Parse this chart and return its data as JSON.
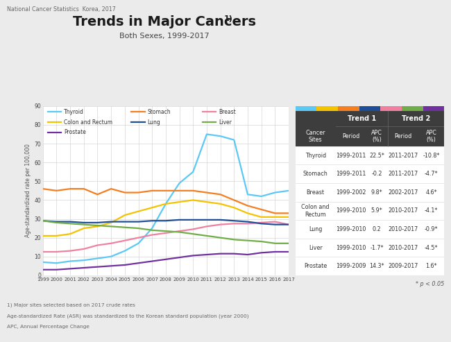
{
  "title": "Trends in Major Cancers",
  "title_superscript": "1)",
  "subtitle": "Both Sexes, 1999-2017",
  "header_note": "National Cancer Statistics  Korea, 2017",
  "footer_notes": [
    "¹⁾ Major sites selected based on 2017 crude rates",
    "Age-standardized Rate (ASR) was standardized to the Korean standard population (year 2000)",
    "APC, Annual Percentage Change"
  ],
  "ylabel": "Age-standardized rate per 100,000",
  "years": [
    1999,
    2000,
    2001,
    2002,
    2003,
    2004,
    2005,
    2006,
    2007,
    2008,
    2009,
    2010,
    2011,
    2012,
    2013,
    2014,
    2015,
    2016,
    2017
  ],
  "series": {
    "Thyroid": {
      "color": "#5BC8F5",
      "data": [
        7,
        6.5,
        7.5,
        8,
        9,
        10,
        13,
        17,
        25,
        38,
        49,
        55,
        75,
        74,
        72,
        43,
        42,
        44,
        45
      ]
    },
    "Stomach": {
      "color": "#F47E20",
      "data": [
        46,
        45,
        46,
        46,
        43,
        46,
        44,
        44,
        45,
        45,
        45,
        45,
        44,
        43,
        40,
        37,
        35,
        33,
        33
      ]
    },
    "Breast": {
      "color": "#F080A0",
      "data": [
        12.5,
        12.5,
        13,
        14,
        16,
        17,
        18.5,
        20,
        21.5,
        22.5,
        23.5,
        24.5,
        26,
        27,
        27.5,
        27.5,
        28,
        28.5,
        27
      ]
    },
    "Colon and Rectum": {
      "color": "#F5C200",
      "data": [
        21,
        21,
        22,
        25,
        26,
        28,
        32,
        34,
        36,
        38,
        39,
        40,
        39,
        38,
        36,
        33,
        31,
        31,
        31
      ]
    },
    "Lung": {
      "color": "#1F4E99",
      "data": [
        29,
        28.5,
        28.5,
        28,
        28,
        28.5,
        28.5,
        28.5,
        29,
        29,
        29.5,
        29.5,
        29.5,
        29.5,
        29,
        28.5,
        27.5,
        27,
        27
      ]
    },
    "Liver": {
      "color": "#70AD47",
      "data": [
        29,
        28,
        27.5,
        27,
        26.5,
        26,
        25.5,
        25,
        24,
        23.5,
        23,
        22,
        21,
        20,
        19,
        18.5,
        18,
        17,
        17
      ]
    },
    "Prostate": {
      "color": "#7030A0",
      "data": [
        3,
        3,
        3.5,
        4,
        4.5,
        5,
        5.5,
        6.5,
        7.5,
        8.5,
        9.5,
        10.5,
        11,
        11.5,
        11.5,
        11,
        12,
        12.5,
        12.5
      ]
    }
  },
  "ylim": [
    0,
    90
  ],
  "yticks": [
    0,
    10,
    20,
    30,
    40,
    50,
    60,
    70,
    80,
    90
  ],
  "bg_color": "#ebebeb",
  "plot_bg": "#ffffff",
  "table": {
    "header_bg": "#3d3d3d",
    "top_bar_colors": [
      "#5BC8F5",
      "#F5C200",
      "#F47E20",
      "#1F4E99",
      "#F080A0",
      "#70AD47",
      "#7030A0"
    ],
    "cancer_sites": [
      "Thyroid",
      "Stomach",
      "Breast",
      "Colon and\nRectum",
      "Lung",
      "Liver",
      "Prostate"
    ],
    "trend1_period": [
      "1999-2011",
      "1999-2011",
      "1999-2002",
      "1999-2010",
      "1999-2010",
      "1999-2010",
      "1999-2009"
    ],
    "trend1_apc": [
      "22.5*",
      "-0.2",
      "9.8*",
      "5.9*",
      "0.2",
      "-1.7*",
      "14.3*"
    ],
    "trend2_period": [
      "2011-2017",
      "2011-2017",
      "2002-2017",
      "2010-2017",
      "2010-2017",
      "2010-2017",
      "2009-2017"
    ],
    "trend2_apc": [
      "-10.8*",
      "-4.7*",
      "4.6*",
      "-4.1*",
      "-0.9*",
      "-4.5*",
      "1.6*"
    ]
  },
  "legend_cols": [
    [
      [
        "Thyroid",
        "#5BC8F5"
      ],
      [
        "Colon and Rectum",
        "#F5C200"
      ],
      [
        "Prostate",
        "#7030A0"
      ]
    ],
    [
      [
        "Stomach",
        "#F47E20"
      ],
      [
        "Lung",
        "#1F4E99"
      ]
    ],
    [
      [
        "Breast",
        "#F080A0"
      ],
      [
        "Liver",
        "#70AD47"
      ]
    ]
  ]
}
